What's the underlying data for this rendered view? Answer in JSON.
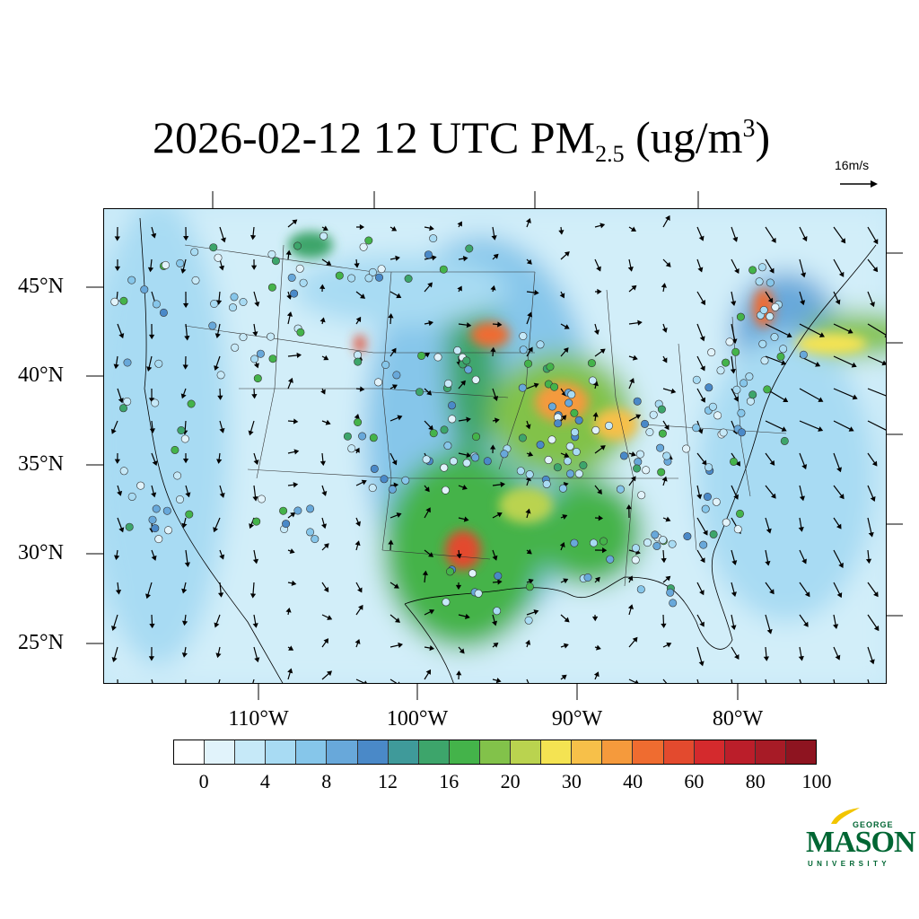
{
  "title": {
    "prefix": "2026-02-12 12 UTC PM",
    "subscript": "2.5",
    "unit_open": " (ug/m",
    "superscript": "3",
    "unit_close": ")"
  },
  "reference_vector": {
    "label": "16m/s"
  },
  "map": {
    "projection": "Lambert conformal (CONUS)",
    "lat_labels": [
      "45°N",
      "40°N",
      "35°N",
      "30°N",
      "25°N"
    ],
    "lon_labels": [
      "110°W",
      "100°W",
      "90°W",
      "80°W"
    ],
    "content": [
      "PM2.5 concentration field",
      "wind vectors",
      "monitor station observations",
      "state boundaries",
      "coastlines"
    ]
  },
  "colorbar": {
    "labels": [
      "0",
      "4",
      "8",
      "12",
      "16",
      "20",
      "30",
      "40",
      "60",
      "80",
      "100"
    ],
    "colors": [
      "#ffffff",
      "#e1f3fb",
      "#c6e9f8",
      "#a8dbf3",
      "#86c6ea",
      "#68a8da",
      "#4a89c8",
      "#3f9a9a",
      "#3da56b",
      "#44b34a",
      "#82c24a",
      "#bad34f",
      "#f4e352",
      "#f7c049",
      "#f59a3c",
      "#ef6c30",
      "#e34a2e",
      "#d42a2d",
      "#bb1e2a",
      "#a71b26",
      "#8e1420"
    ]
  },
  "logo": {
    "top": "GEORGE",
    "main": "MASON",
    "bottom": "UNIVERSITY",
    "color": "#006633",
    "accent": "#f2c500"
  }
}
